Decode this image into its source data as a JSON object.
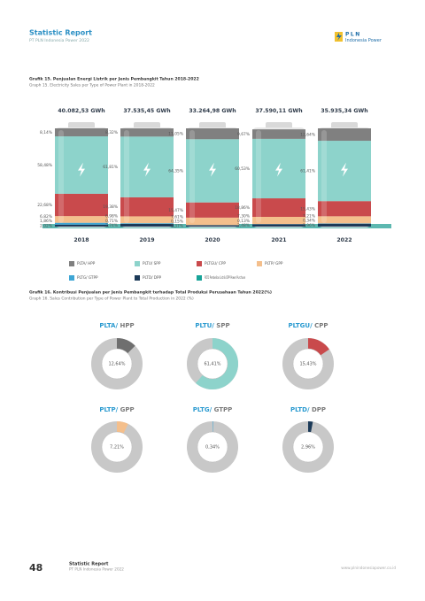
{
  "header": {
    "title": "Statistic Report",
    "subtitle": "PT PLN Indonesia Power 2022",
    "logo_top": "PLN",
    "logo_bottom": "Indonesia Power"
  },
  "chart_data": [
    {
      "type": "battery",
      "title": "Grafik 15. Penjualan Energi Listrik per Jenis Pembangkit Tahun 2018-2022",
      "subtitle": "Graph 15. Electricity Sales per Type of Power Plant in 2018-2022",
      "categories": [
        "2018",
        "2019",
        "2020",
        "2021",
        "2022"
      ],
      "totals": [
        "40.082,53 GWh",
        "37.535,45 GWh",
        "33.264,98 GWh",
        "37.590,11 GWh",
        "35.935,34 GWh"
      ],
      "ylim": [
        0,
        100
      ],
      "series": [
        {
          "name": "PLTA/ HPP",
          "color": "#808080",
          "values": [
            8.14,
            8.32,
            11.05,
            9.67,
            12.64
          ],
          "value_labels": [
            "8,14%",
            "8,32%",
            "11,05%",
            "9,67%",
            "12,64%"
          ]
        },
        {
          "name": "PLTU/ SPP",
          "color": "#8dd3cb",
          "values": [
            58.48,
            61.81,
            64.35,
            60.53,
            61.41
          ],
          "value_labels": [
            "58,48%",
            "61,81%",
            "64,35%",
            "60,53%",
            "61,41%"
          ]
        },
        {
          "name": "PLTGU/ CPP",
          "color": "#c94a4c",
          "values": [
            22.68,
            19.38,
            15.47,
            18.86,
            15.43
          ],
          "value_labels": [
            "22,68%",
            "19,38%",
            "15,47%",
            "18,86%",
            "15,43%"
          ]
        },
        {
          "name": "PLTP/ GPP",
          "color": "#f4bf8c",
          "values": [
            6.82,
            6.98,
            7.61,
            7.3,
            7.21
          ],
          "value_labels": [
            "6,82%",
            "6,98%",
            "7,61%",
            "7,30%",
            "7,21%"
          ]
        },
        {
          "name": "PLTG/ GTPP",
          "color": "#3ea6d5",
          "values": [
            1.86,
            0.71,
            0.15,
            0.13,
            0.34
          ],
          "value_labels": [
            "1,86%",
            "0,71%",
            "0,15%",
            "0,13%",
            "0,34%"
          ]
        },
        {
          "name": "PLTD/ DPP",
          "color": "#1c3a58",
          "values": [
            2.02,
            2.74,
            1.37,
            2.48,
            2.96
          ],
          "value_labels": [
            "2,02%",
            "2,74%",
            "1,37%",
            "2,48%",
            "2,96%"
          ]
        },
        {
          "name": "PLTD Pembelian Listrik DPP Power Purchase",
          "color": "#17a398",
          "values": [
            null,
            null,
            null,
            null,
            null
          ]
        }
      ]
    },
    {
      "type": "donut",
      "title": "Grafik 16. Kontribusi Penjualan per Jenis Pembangkit terhadap Total Produksi Perusahaan Tahun 2022(%)",
      "subtitle": "Graph 16. Sales Contribution per Type of Power Plant to Total Production in 2022 (%)",
      "labels": [
        [
          "PLTA/",
          "HPP"
        ],
        [
          "PLTU/",
          "SPP"
        ],
        [
          "PLTGU/",
          "CPP"
        ],
        [
          "PLTP/",
          "GPP"
        ],
        [
          "PLTG/",
          "GTPP"
        ],
        [
          "PLTD/",
          "DPP"
        ]
      ],
      "values": [
        12.64,
        61.41,
        15.43,
        7.21,
        0.34,
        2.96
      ],
      "value_labels": [
        "12,64%",
        "61,41%",
        "15,43%",
        "7,21%",
        "0,34%",
        "2,96%"
      ],
      "colors": [
        "#6f6f6f",
        "#8dd3cb",
        "#c94a4c",
        "#f4bf8c",
        "#3ea6d5",
        "#1c3a58"
      ]
    }
  ],
  "footer": {
    "page": "48",
    "title": "Statistic Report",
    "subtitle": "PT PLN Indonesia Power 2022",
    "url": "www.plnindonesiapower.co.id"
  }
}
